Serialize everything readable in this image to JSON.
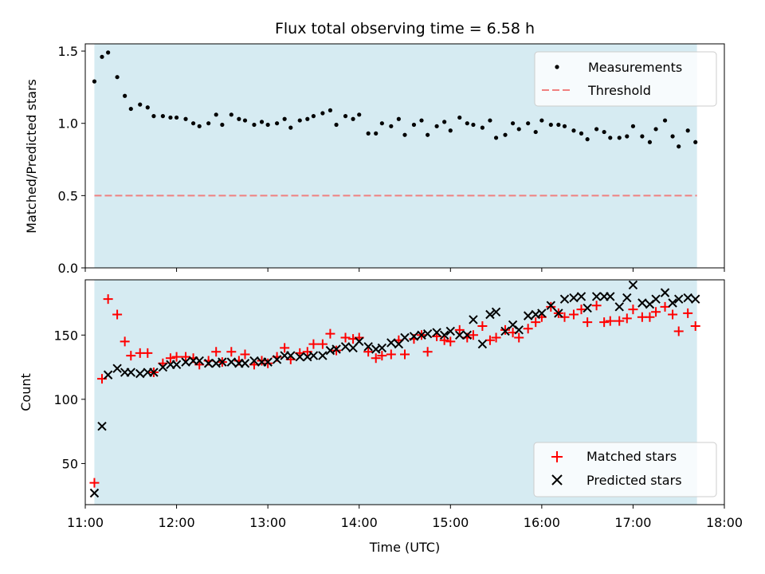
{
  "chart_data": [
    {
      "type": "scatter",
      "title": "Flux total observing time = 6.58 h",
      "ylabel": "Matched/Predicted stars",
      "xlabel": "",
      "xlim": [
        "11:00",
        "18:00"
      ],
      "ylim": [
        0,
        1.55
      ],
      "yticks": [
        "0.0",
        "0.5",
        "1.0",
        "1.5"
      ],
      "grid": false,
      "legend": "top-right",
      "shaded_span": [
        "11:06",
        "17:42"
      ],
      "series": [
        {
          "name": "Measurements",
          "marker": "dot",
          "color": "#000000",
          "x": [
            "11:06",
            "11:11",
            "11:15",
            "11:21",
            "11:26",
            "11:30",
            "11:36",
            "11:41",
            "11:45",
            "11:51",
            "11:56",
            "12:00",
            "12:06",
            "12:11",
            "12:15",
            "12:21",
            "12:26",
            "12:30",
            "12:36",
            "12:41",
            "12:45",
            "12:51",
            "12:56",
            "13:00",
            "13:06",
            "13:11",
            "13:15",
            "13:21",
            "13:26",
            "13:30",
            "13:36",
            "13:41",
            "13:45",
            "13:51",
            "13:56",
            "14:00",
            "14:06",
            "14:11",
            "14:15",
            "14:21",
            "14:26",
            "14:30",
            "14:36",
            "14:41",
            "14:45",
            "14:51",
            "14:56",
            "15:00",
            "15:06",
            "15:11",
            "15:15",
            "15:21",
            "15:26",
            "15:30",
            "15:36",
            "15:41",
            "15:45",
            "15:51",
            "15:56",
            "16:00",
            "16:06",
            "16:11",
            "16:15",
            "16:21",
            "16:26",
            "16:30",
            "16:36",
            "16:41",
            "16:45",
            "16:51",
            "16:56",
            "17:00",
            "17:06",
            "17:11",
            "17:15",
            "17:21",
            "17:26",
            "17:30",
            "17:36",
            "17:41"
          ],
          "values": [
            1.29,
            1.46,
            1.49,
            1.32,
            1.19,
            1.1,
            1.13,
            1.11,
            1.05,
            1.05,
            1.04,
            1.04,
            1.03,
            1.0,
            0.98,
            1.0,
            1.06,
            0.99,
            1.06,
            1.03,
            1.02,
            0.99,
            1.01,
            0.99,
            1.0,
            1.03,
            0.97,
            1.02,
            1.03,
            1.05,
            1.07,
            1.09,
            0.99,
            1.05,
            1.03,
            1.06,
            0.93,
            0.93,
            1.0,
            0.98,
            1.03,
            0.92,
            0.99,
            1.02,
            0.92,
            0.98,
            1.01,
            0.95,
            1.04,
            1.0,
            0.99,
            0.97,
            1.02,
            0.9,
            0.92,
            1.0,
            0.96,
            1.0,
            0.94,
            1.02,
            0.99,
            0.99,
            0.98,
            0.95,
            0.93,
            0.89,
            0.96,
            0.94,
            0.9,
            0.9,
            0.91,
            0.98,
            0.91,
            0.87,
            0.96,
            1.02,
            0.91,
            0.84,
            0.95,
            0.87
          ]
        },
        {
          "name": "Threshold",
          "marker": "dashed-line",
          "color": "#f08080",
          "x": [
            "11:06",
            "17:42"
          ],
          "values": [
            0.5,
            0.5
          ]
        }
      ]
    },
    {
      "type": "scatter",
      "title": "",
      "ylabel": "Count",
      "xlabel": "Time (UTC)",
      "xlim": [
        "11:00",
        "18:00"
      ],
      "xticks": [
        "11:00",
        "12:00",
        "13:00",
        "14:00",
        "15:00",
        "16:00",
        "17:00",
        "18:00"
      ],
      "ylim": [
        18,
        193
      ],
      "yticks": [
        "50",
        "100",
        "150"
      ],
      "grid": false,
      "legend": "bottom-right",
      "shaded_span": [
        "11:06",
        "17:42"
      ],
      "series": [
        {
          "name": "Matched stars",
          "marker": "plus",
          "color": "#ff0000",
          "x": [
            "11:06",
            "11:11",
            "11:15",
            "11:21",
            "11:26",
            "11:30",
            "11:36",
            "11:41",
            "11:45",
            "11:51",
            "11:56",
            "12:00",
            "12:06",
            "12:11",
            "12:15",
            "12:21",
            "12:26",
            "12:30",
            "12:36",
            "12:41",
            "12:45",
            "12:51",
            "12:56",
            "13:00",
            "13:06",
            "13:11",
            "13:15",
            "13:21",
            "13:26",
            "13:30",
            "13:36",
            "13:41",
            "13:45",
            "13:51",
            "13:56",
            "14:00",
            "14:06",
            "14:11",
            "14:15",
            "14:21",
            "14:26",
            "14:30",
            "14:36",
            "14:41",
            "14:45",
            "14:51",
            "14:56",
            "15:00",
            "15:06",
            "15:11",
            "15:15",
            "15:21",
            "15:26",
            "15:30",
            "15:36",
            "15:41",
            "15:45",
            "15:51",
            "15:56",
            "16:00",
            "16:06",
            "16:11",
            "16:15",
            "16:21",
            "16:26",
            "16:30",
            "16:36",
            "16:41",
            "16:45",
            "16:51",
            "16:56",
            "17:00",
            "17:06",
            "17:11",
            "17:15",
            "17:21",
            "17:26",
            "17:30",
            "17:36",
            "17:41"
          ],
          "values": [
            35,
            116,
            178,
            166,
            145,
            134,
            136,
            136,
            121,
            128,
            132,
            133,
            133,
            132,
            127,
            130,
            137,
            129,
            137,
            130,
            135,
            127,
            130,
            128,
            133,
            140,
            131,
            136,
            137,
            143,
            143,
            151,
            138,
            148,
            147,
            148,
            137,
            132,
            134,
            135,
            146,
            135,
            147,
            150,
            137,
            149,
            146,
            145,
            154,
            148,
            150,
            157,
            146,
            148,
            154,
            152,
            148,
            155,
            160,
            164,
            172,
            167,
            164,
            166,
            170,
            160,
            173,
            160,
            161,
            161,
            163,
            170,
            164,
            164,
            168,
            172,
            166,
            153,
            167,
            157
          ]
        },
        {
          "name": "Predicted stars",
          "marker": "x",
          "color": "#000000",
          "x": [
            "11:06",
            "11:11",
            "11:15",
            "11:21",
            "11:26",
            "11:30",
            "11:36",
            "11:41",
            "11:45",
            "11:51",
            "11:56",
            "12:00",
            "12:06",
            "12:11",
            "12:15",
            "12:21",
            "12:26",
            "12:30",
            "12:36",
            "12:41",
            "12:45",
            "12:51",
            "12:56",
            "13:00",
            "13:06",
            "13:11",
            "13:15",
            "13:21",
            "13:26",
            "13:30",
            "13:36",
            "13:41",
            "13:45",
            "13:51",
            "13:56",
            "14:00",
            "14:06",
            "14:11",
            "14:15",
            "14:21",
            "14:26",
            "14:30",
            "14:36",
            "14:41",
            "14:45",
            "14:51",
            "14:56",
            "15:00",
            "15:06",
            "15:11",
            "15:15",
            "15:21",
            "15:26",
            "15:30",
            "15:36",
            "15:41",
            "15:45",
            "15:51",
            "15:56",
            "16:00",
            "16:06",
            "16:11",
            "16:15",
            "16:21",
            "16:26",
            "16:30",
            "16:36",
            "16:41",
            "16:45",
            "16:51",
            "16:56",
            "17:00",
            "17:06",
            "17:11",
            "17:15",
            "17:21",
            "17:26",
            "17:30",
            "17:36",
            "17:41"
          ],
          "values": [
            27,
            79,
            119,
            124,
            121,
            121,
            120,
            121,
            121,
            125,
            127,
            127,
            129,
            130,
            130,
            128,
            128,
            129,
            129,
            128,
            128,
            130,
            129,
            129,
            131,
            134,
            134,
            133,
            133,
            134,
            134,
            138,
            139,
            141,
            140,
            145,
            141,
            139,
            140,
            144,
            143,
            148,
            149,
            150,
            151,
            152,
            150,
            153,
            150,
            150,
            162,
            143,
            166,
            168,
            153,
            158,
            154,
            165,
            166,
            167,
            173,
            167,
            178,
            179,
            180,
            171,
            180,
            180,
            180,
            172,
            179,
            189,
            175,
            174,
            178,
            183,
            175,
            178,
            179,
            178
          ]
        }
      ]
    }
  ]
}
